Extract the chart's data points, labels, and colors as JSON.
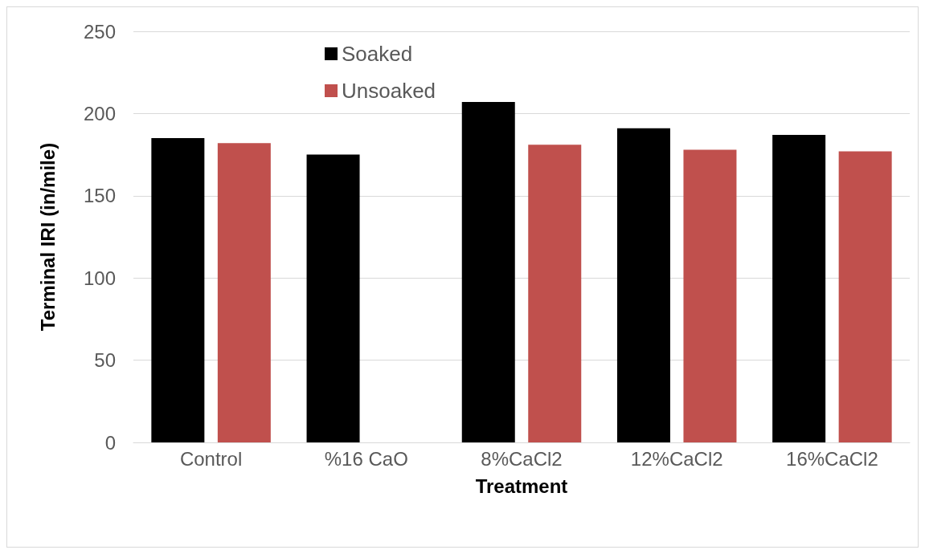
{
  "chart_data": {
    "type": "bar",
    "xlabel": "Treatment",
    "ylabel": "Terminal IRI (in/mile)",
    "categories": [
      "Control",
      "%16 CaO",
      "8%CaCl2",
      "12%CaCl2",
      "16%CaCl2"
    ],
    "series": [
      {
        "name": "Soaked",
        "color": "#000000",
        "values": [
          185,
          175,
          207,
          191,
          187
        ]
      },
      {
        "name": "Unsoaked",
        "color": "#c0504d",
        "values": [
          182,
          null,
          181,
          178,
          177
        ]
      }
    ],
    "ylim": [
      0,
      250
    ],
    "yticks": [
      0,
      50,
      100,
      150,
      200,
      250
    ],
    "grid": "y",
    "legend": "top"
  }
}
